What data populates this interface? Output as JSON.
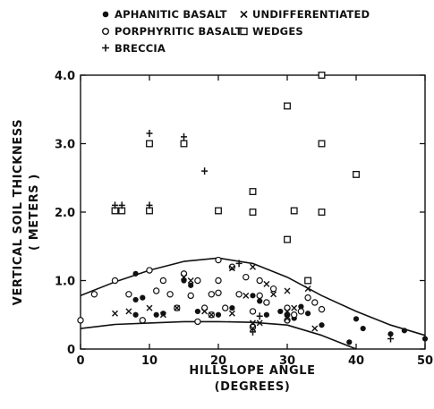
{
  "chart_data": {
    "type": "scatter",
    "title": "",
    "xlabel": "HILLSLOPE ANGLE",
    "xlabel_units": "(DEGREES)",
    "ylabel": "VERTICAL SOIL THICKNESS",
    "ylabel_units": "( METERS )",
    "xlim": [
      0,
      50
    ],
    "ylim": [
      0,
      4.0
    ],
    "xticks": [
      "0",
      "10",
      "20",
      "30",
      "40",
      "50"
    ],
    "yticks": [
      "0",
      "1.0",
      "2.0",
      "3.0",
      "4.0"
    ],
    "grid": false,
    "legend_position": "top",
    "legend": [
      {
        "key": "aphanitic",
        "label": "APHANITIC BASALT",
        "marker": "filled-circle"
      },
      {
        "key": "undiff",
        "label": "UNDIFFERENTIATED",
        "marker": "x"
      },
      {
        "key": "porphyritic",
        "label": "PORPHYRITIC BASALT",
        "marker": "open-circle"
      },
      {
        "key": "wedges",
        "label": "WEDGES",
        "marker": "open-square"
      },
      {
        "key": "breccia",
        "label": "BRECCIA",
        "marker": "plus"
      }
    ],
    "series": [
      {
        "key": "aphanitic",
        "name": "APHANITIC BASALT",
        "marker": "filled-circle",
        "points": [
          [
            8,
            1.1
          ],
          [
            8,
            0.72
          ],
          [
            9,
            0.75
          ],
          [
            8,
            0.5
          ],
          [
            11,
            0.5
          ],
          [
            12,
            0.52
          ],
          [
            15,
            1.0
          ],
          [
            16,
            0.93
          ],
          [
            17,
            0.55
          ],
          [
            18,
            0.6
          ],
          [
            20,
            0.5
          ],
          [
            22,
            0.6
          ],
          [
            25,
            0.78
          ],
          [
            26,
            0.7
          ],
          [
            27,
            0.5
          ],
          [
            29,
            0.55
          ],
          [
            30,
            0.5
          ],
          [
            31,
            0.45
          ],
          [
            32,
            0.62
          ],
          [
            33,
            0.52
          ],
          [
            35,
            0.35
          ],
          [
            39,
            0.1
          ],
          [
            40,
            0.44
          ],
          [
            41,
            0.3
          ],
          [
            45,
            0.22
          ],
          [
            47,
            0.27
          ],
          [
            50,
            0.15
          ]
        ]
      },
      {
        "key": "porphyritic",
        "name": "PORPHYRITIC BASALT",
        "marker": "open-circle",
        "points": [
          [
            0,
            0.42
          ],
          [
            2,
            0.8
          ],
          [
            5,
            1.0
          ],
          [
            7,
            0.8
          ],
          [
            9,
            0.42
          ],
          [
            10,
            1.15
          ],
          [
            11,
            0.85
          ],
          [
            12,
            1.0
          ],
          [
            13,
            0.8
          ],
          [
            14,
            0.6
          ],
          [
            15,
            1.1
          ],
          [
            16,
            0.78
          ],
          [
            17,
            1.0
          ],
          [
            17,
            0.4
          ],
          [
            18,
            0.6
          ],
          [
            19,
            0.8
          ],
          [
            19,
            0.5
          ],
          [
            20,
            1.3
          ],
          [
            20,
            1.0
          ],
          [
            20,
            0.82
          ],
          [
            21,
            0.6
          ],
          [
            22,
            1.2
          ],
          [
            23,
            0.8
          ],
          [
            24,
            1.05
          ],
          [
            25,
            0.55
          ],
          [
            25,
            0.32
          ],
          [
            26,
            0.78
          ],
          [
            26,
            1.0
          ],
          [
            27,
            0.68
          ],
          [
            28,
            0.88
          ],
          [
            30,
            0.6
          ],
          [
            30,
            0.42
          ],
          [
            31,
            0.5
          ],
          [
            32,
            0.55
          ],
          [
            33,
            0.75
          ],
          [
            34,
            0.68
          ],
          [
            35,
            0.58
          ]
        ]
      },
      {
        "key": "undiff",
        "name": "UNDIFFERENTIATED",
        "marker": "x",
        "points": [
          [
            5,
            0.52
          ],
          [
            7,
            0.55
          ],
          [
            10,
            0.6
          ],
          [
            12,
            0.5
          ],
          [
            14,
            0.6
          ],
          [
            15,
            1.05
          ],
          [
            16,
            1.0
          ],
          [
            18,
            0.55
          ],
          [
            19,
            0.5
          ],
          [
            22,
            1.18
          ],
          [
            22,
            0.52
          ],
          [
            24,
            0.78
          ],
          [
            25,
            0.38
          ],
          [
            25,
            1.2
          ],
          [
            25,
            0.3
          ],
          [
            26,
            0.38
          ],
          [
            27,
            0.95
          ],
          [
            28,
            0.8
          ],
          [
            30,
            0.85
          ],
          [
            30,
            0.55
          ],
          [
            30,
            0.45
          ],
          [
            31,
            0.6
          ],
          [
            33,
            0.88
          ],
          [
            34,
            0.3
          ]
        ]
      },
      {
        "key": "wedges",
        "name": "WEDGES",
        "marker": "open-square",
        "points": [
          [
            5,
            2.02
          ],
          [
            6,
            2.02
          ],
          [
            10,
            3.0
          ],
          [
            10,
            2.02
          ],
          [
            15,
            3.0
          ],
          [
            20,
            2.02
          ],
          [
            25,
            2.3
          ],
          [
            25,
            2.0
          ],
          [
            30,
            3.55
          ],
          [
            30,
            1.6
          ],
          [
            31,
            2.02
          ],
          [
            35,
            4.0
          ],
          [
            35,
            3.0
          ],
          [
            35,
            2.0
          ],
          [
            40,
            2.55
          ],
          [
            33,
            1.0
          ]
        ]
      },
      {
        "key": "breccia",
        "name": "BRECCIA",
        "marker": "plus",
        "points": [
          [
            5,
            2.1
          ],
          [
            6,
            2.1
          ],
          [
            10,
            3.15
          ],
          [
            10,
            2.1
          ],
          [
            15,
            3.1
          ],
          [
            18,
            2.6
          ],
          [
            23,
            1.25
          ],
          [
            25,
            0.25
          ],
          [
            26,
            0.48
          ],
          [
            30,
            0.5
          ],
          [
            45,
            0.15
          ]
        ]
      }
    ],
    "envelope": {
      "upper": [
        [
          0,
          0.78
        ],
        [
          5,
          0.98
        ],
        [
          10,
          1.15
        ],
        [
          15,
          1.28
        ],
        [
          20,
          1.33
        ],
        [
          25,
          1.25
        ],
        [
          30,
          1.05
        ],
        [
          35,
          0.78
        ],
        [
          40,
          0.55
        ],
        [
          45,
          0.35
        ],
        [
          50,
          0.2
        ]
      ],
      "lower": [
        [
          0,
          0.3
        ],
        [
          5,
          0.36
        ],
        [
          10,
          0.38
        ],
        [
          15,
          0.4
        ],
        [
          20,
          0.4
        ],
        [
          25,
          0.39
        ],
        [
          30,
          0.35
        ],
        [
          35,
          0.2
        ],
        [
          38,
          0.08
        ],
        [
          40,
          0.0
        ]
      ]
    }
  }
}
